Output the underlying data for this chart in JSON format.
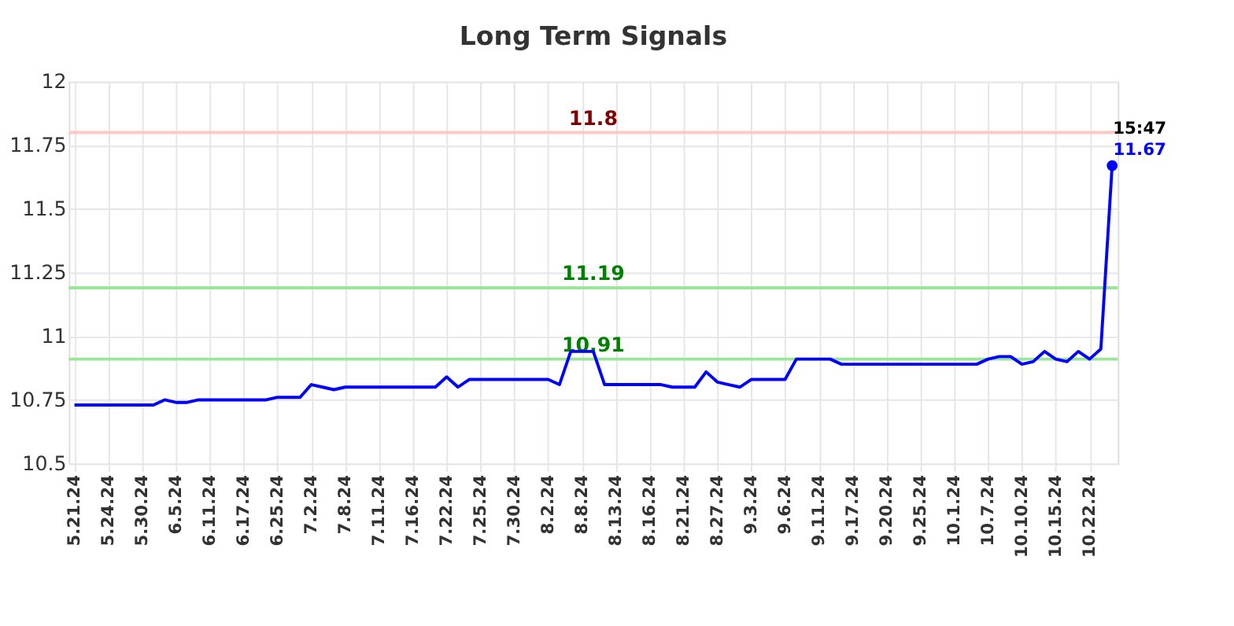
{
  "chart_data": {
    "type": "line",
    "title": "Long Term Signals",
    "categories": [
      "5.21.24",
      null,
      null,
      "5.24.24",
      null,
      null,
      "5.30.24",
      null,
      null,
      "6.5.24",
      null,
      null,
      "6.11.24",
      null,
      null,
      "6.17.24",
      null,
      null,
      "6.25.24",
      null,
      null,
      "7.2.24",
      null,
      null,
      "7.8.24",
      null,
      null,
      "7.11.24",
      null,
      null,
      "7.16.24",
      null,
      null,
      "7.22.24",
      null,
      null,
      "7.25.24",
      null,
      null,
      "7.30.24",
      null,
      null,
      "8.2.24",
      null,
      null,
      "8.8.24",
      null,
      null,
      "8.13.24",
      null,
      null,
      "8.16.24",
      null,
      null,
      "8.21.24",
      null,
      null,
      "8.27.24",
      null,
      null,
      "9.3.24",
      null,
      null,
      "9.6.24",
      null,
      null,
      "9.11.24",
      null,
      null,
      "9.17.24",
      null,
      null,
      "9.20.24",
      null,
      null,
      "9.25.24",
      null,
      null,
      "10.1.24",
      null,
      null,
      "10.7.24",
      null,
      null,
      "10.10.24",
      null,
      null,
      "10.15.24",
      null,
      null,
      "10.22.24",
      null,
      null
    ],
    "series": [
      {
        "color": "#0000ff",
        "values": [
          10.73,
          10.73,
          10.73,
          10.73,
          10.73,
          10.73,
          10.73,
          10.73,
          10.75,
          10.74,
          10.74,
          10.75,
          10.75,
          10.75,
          10.75,
          10.75,
          10.75,
          10.75,
          10.76,
          10.76,
          10.76,
          10.81,
          10.8,
          10.79,
          10.8,
          10.8,
          10.8,
          10.8,
          10.8,
          10.8,
          10.8,
          10.8,
          10.8,
          10.84,
          10.8,
          10.83,
          10.83,
          10.83,
          10.83,
          10.83,
          10.83,
          10.83,
          10.83,
          10.81,
          10.94,
          10.94,
          10.94,
          10.81,
          10.81,
          10.81,
          10.81,
          10.81,
          10.81,
          10.8,
          10.8,
          10.8,
          10.86,
          10.82,
          10.81,
          10.8,
          10.83,
          10.83,
          10.83,
          10.83,
          10.91,
          10.91,
          10.91,
          10.91,
          10.89,
          10.89,
          10.89,
          10.89,
          10.89,
          10.89,
          10.89,
          10.89,
          10.89,
          10.89,
          10.89,
          10.89,
          10.89,
          10.91,
          10.92,
          10.92,
          10.89,
          10.9,
          10.94,
          10.91,
          10.9,
          10.94,
          10.91,
          10.95,
          11.67
        ],
        "value_labels": [
          null,
          null,
          null,
          null,
          null,
          null,
          null,
          null,
          null,
          null,
          null,
          null,
          null,
          null,
          null,
          null,
          null,
          null,
          null,
          null,
          null,
          null,
          null,
          null,
          null,
          null,
          null,
          null,
          null,
          null,
          null,
          null,
          null,
          null,
          null,
          null,
          null,
          null,
          null,
          null,
          null,
          null,
          null,
          null,
          null,
          null,
          null,
          null,
          null,
          null,
          null,
          null,
          null,
          null,
          null,
          null,
          null,
          null,
          null,
          null,
          null,
          null,
          null,
          null,
          null,
          null,
          null,
          null,
          null,
          null,
          null,
          null,
          null,
          null,
          null,
          null,
          null,
          null,
          null,
          null,
          null,
          null,
          null,
          null,
          null,
          null,
          null,
          null,
          null,
          null,
          null,
          null,
          "11.67"
        ]
      }
    ],
    "ylim": [
      10.5,
      12
    ],
    "yticks": [
      10.5,
      10.75,
      11,
      11.25,
      11.5,
      11.75,
      12
    ],
    "grid": true,
    "ref_lines": [
      {
        "axis": "y",
        "value": 11.8,
        "label": "11.8",
        "color": "#ffc8c8"
      },
      {
        "axis": "y",
        "value": 11.19,
        "label": "11.19",
        "color": "#99e699"
      },
      {
        "axis": "y",
        "value": 10.91,
        "label": "10.91",
        "color": "#99e699"
      }
    ],
    "annotations": [
      "15:47"
    ]
  }
}
